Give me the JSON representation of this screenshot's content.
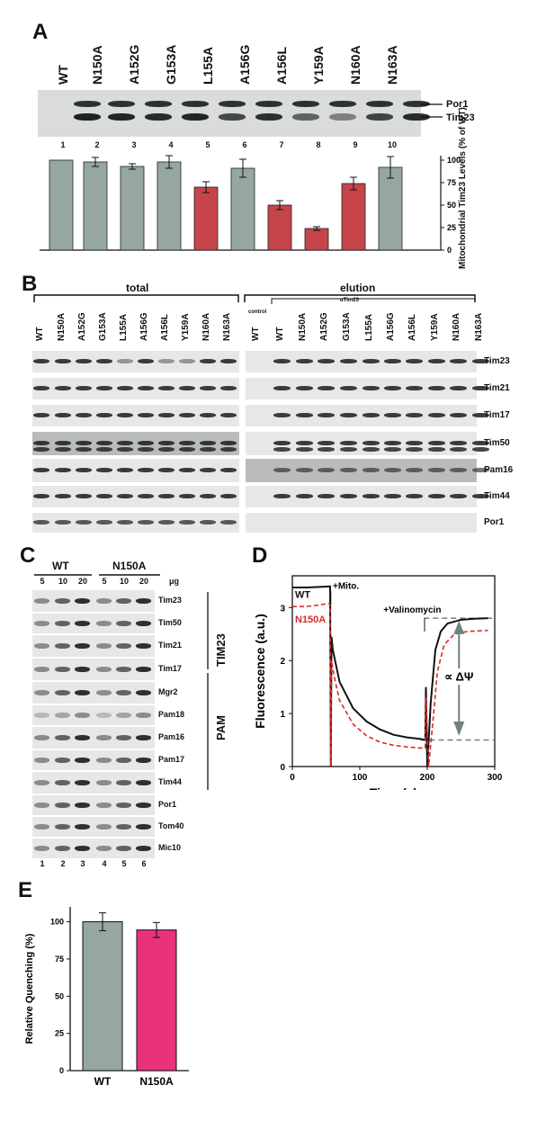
{
  "panelA": {
    "label": "A",
    "lanes": [
      "WT",
      "N150A",
      "A152G",
      "G153A",
      "L155A",
      "A156G",
      "A156L",
      "Y159A",
      "N160A",
      "N163A"
    ],
    "lane_numbers": [
      "1",
      "2",
      "3",
      "4",
      "5",
      "6",
      "7",
      "8",
      "9",
      "10"
    ],
    "band_labels": [
      "Por1",
      "Tim23"
    ],
    "tim23_intensity": [
      1.0,
      0.97,
      0.93,
      0.98,
      0.72,
      0.9,
      0.5,
      0.28,
      0.75,
      0.92
    ],
    "chart_data": {
      "type": "bar",
      "categories": [
        "WT",
        "N150A",
        "A152G",
        "G153A",
        "L155A",
        "A156G",
        "A156L",
        "Y159A",
        "N160A",
        "N163A"
      ],
      "values": [
        100,
        98,
        93,
        98,
        70,
        91,
        50,
        24,
        74,
        92
      ],
      "errors": [
        0,
        5,
        3,
        7,
        6,
        10,
        5,
        2,
        7,
        12
      ],
      "highlight": [
        false,
        false,
        false,
        false,
        true,
        false,
        true,
        true,
        true,
        false
      ],
      "colors": {
        "normal": "#95a7a0",
        "highlight": "#c6454b"
      },
      "ylabel": "Mitochondrial Tim23 Levels (% of WT)",
      "ylim": [
        0,
        105
      ],
      "yticks": [
        "0",
        "25",
        "50",
        "75",
        "100"
      ],
      "yaxis_side": "right"
    }
  },
  "panelB": {
    "label": "B",
    "group_total": "total",
    "group_elution": "elution",
    "control": "control",
    "antibody": "αTim23",
    "total_lanes": [
      "WT",
      "N150A",
      "A152G",
      "G153A",
      "L155A",
      "A156G",
      "A156L",
      "Y159A",
      "N160A",
      "N163A"
    ],
    "elution_lanes": [
      "WT",
      "N150A",
      "A152G",
      "G153A",
      "L155A",
      "A156G",
      "A156L",
      "Y159A",
      "N160A",
      "N163A"
    ],
    "control_lane": "WT",
    "rows": [
      "Tim23",
      "Tim21",
      "Tim17",
      "Tim50",
      "Pam16",
      "Tim44",
      "Por1"
    ]
  },
  "panelC": {
    "label": "C",
    "group_wt": "WT",
    "group_mut": "N150A",
    "amounts": [
      "5",
      "10",
      "20",
      "5",
      "10",
      "20"
    ],
    "unit": "μg",
    "rows": [
      "Tim23",
      "Tim50",
      "Tim21",
      "Tim17",
      "Mgr2",
      "Pam18",
      "Pam16",
      "Pam17",
      "Tim44",
      "Por1",
      "Tom40",
      "Mic10"
    ],
    "complex_tim23": "TIM23",
    "complex_pam": "PAM",
    "lane_numbers": [
      "1",
      "2",
      "3",
      "4",
      "5",
      "6"
    ]
  },
  "panelD": {
    "label": "D",
    "chart_data": {
      "type": "line",
      "xlabel": "Time (s)",
      "ylabel": "Fluorescence (a.u.)",
      "xlim": [
        0,
        300
      ],
      "ylim": [
        0,
        3.6
      ],
      "xticks": [
        "0",
        "100",
        "200",
        "300"
      ],
      "yticks": [
        "0",
        "1",
        "2",
        "3"
      ],
      "series": [
        {
          "name": "WT",
          "color": "#111111",
          "style": "solid",
          "x": [
            0,
            20,
            40,
            56,
            57,
            58,
            60,
            70,
            90,
            110,
            130,
            150,
            170,
            190,
            197,
            198,
            200,
            205,
            212,
            220,
            230,
            250,
            270,
            290
          ],
          "y": [
            3.38,
            3.38,
            3.39,
            3.4,
            0.0,
            2.45,
            2.2,
            1.6,
            1.1,
            0.85,
            0.7,
            0.6,
            0.55,
            0.52,
            0.5,
            1.5,
            0.0,
            1.2,
            2.2,
            2.55,
            2.7,
            2.77,
            2.79,
            2.8
          ]
        },
        {
          "name": "N150A",
          "color": "#d92b2b",
          "style": "dashed",
          "x": [
            0,
            20,
            40,
            56,
            57,
            58,
            62,
            70,
            90,
            110,
            130,
            150,
            170,
            190,
            197,
            198,
            202,
            208,
            215,
            225,
            240,
            260,
            290
          ],
          "y": [
            3.02,
            3.02,
            3.05,
            3.08,
            0.0,
            2.0,
            1.7,
            1.25,
            0.8,
            0.58,
            0.46,
            0.4,
            0.37,
            0.35,
            0.35,
            1.3,
            0.0,
            0.8,
            1.8,
            2.3,
            2.5,
            2.55,
            2.57
          ]
        }
      ],
      "annotations": [
        "+Mito.",
        "+Valinomycin",
        "∝ ΔΨ"
      ]
    }
  },
  "panelE": {
    "label": "E",
    "chart_data": {
      "type": "bar",
      "categories": [
        "WT",
        "N150A"
      ],
      "values": [
        100,
        94.5
      ],
      "errors": [
        6,
        5
      ],
      "colors": [
        "#95a7a0",
        "#e8327a"
      ],
      "ylabel": "Relative Quenching (%)",
      "ylim": [
        0,
        110
      ],
      "yticks": [
        "0",
        "25",
        "50",
        "75",
        "100"
      ]
    }
  }
}
